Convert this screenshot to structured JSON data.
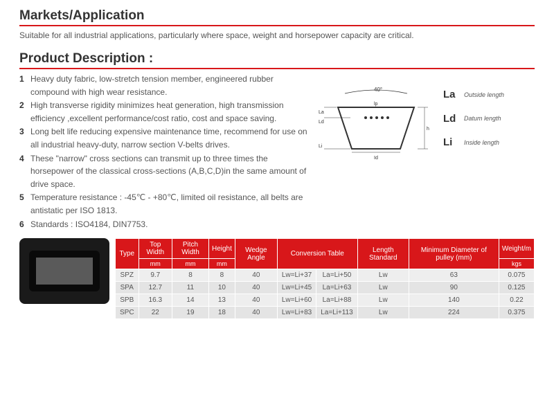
{
  "markets": {
    "title": "Markets/Application",
    "intro": "Suitable for all industrial applications, particularly where space, weight and horsepower capacity are critical."
  },
  "product": {
    "title": "Product  Description :",
    "items": [
      "Heavy duty fabric, low-stretch tension member, engineered  rubber compound with high wear resistance.",
      "High transverse rigidity minimizes heat generation, high transmission efficiency ,excellent performance/cost ratio, cost and space saving.",
      "Long belt life reducing expensive maintenance time, recommend for use on all industrial heavy-duty, narrow section V-belts drives.",
      "These \"narrow\" cross sections can transmit up to three times the horsepower of the classical cross-sections (A,B,C,D)in the same amount of drive space.",
      "Temperature resistance : -45℃ - +80℃, limited oil resistance, all belts are antistatic per ISO 1813.",
      "Standards : ISO4184, DIN7753."
    ]
  },
  "diagram": {
    "angle": "40°",
    "labels": {
      "la_top": "lp",
      "la": "La",
      "ld": "Ld",
      "li": "Li",
      "id": "Id"
    },
    "legend": [
      {
        "sym": "La",
        "txt": "Outside length"
      },
      {
        "sym": "Ld",
        "txt": "Datum length"
      },
      {
        "sym": "Li",
        "txt": "Inside length"
      }
    ]
  },
  "table": {
    "headers1": [
      "Type",
      "Top Width",
      "Pitch Width",
      "Height",
      "Wedge Angle",
      "Conversion Table",
      "Length Standard",
      "Minimum Diameter of pulley (mm)",
      "Weight/m"
    ],
    "headers2": [
      "",
      "mm",
      "mm",
      "mm",
      "",
      "",
      "",
      "",
      "kgs"
    ],
    "rows": [
      [
        "SPZ",
        "9.7",
        "8",
        "8",
        "40",
        "Lw=Li+37",
        "La=Li+50",
        "Lw",
        "63",
        "0.075"
      ],
      [
        "SPA",
        "12.7",
        "11",
        "10",
        "40",
        "Lw=Li+45",
        "La=Li+63",
        "Lw",
        "90",
        "0.125"
      ],
      [
        "SPB",
        "16.3",
        "14",
        "13",
        "40",
        "Lw=Li+60",
        "La=Li+88",
        "Lw",
        "140",
        "0.22"
      ],
      [
        "SPC",
        "22",
        "19",
        "18",
        "40",
        "Lw=Li+83",
        "La=Li+113",
        "Lw",
        "224",
        "0.375"
      ]
    ]
  },
  "colors": {
    "brand_red": "#d8171a",
    "text": "#555",
    "header_bg": "#d8171a",
    "row_bg": "#eee"
  }
}
